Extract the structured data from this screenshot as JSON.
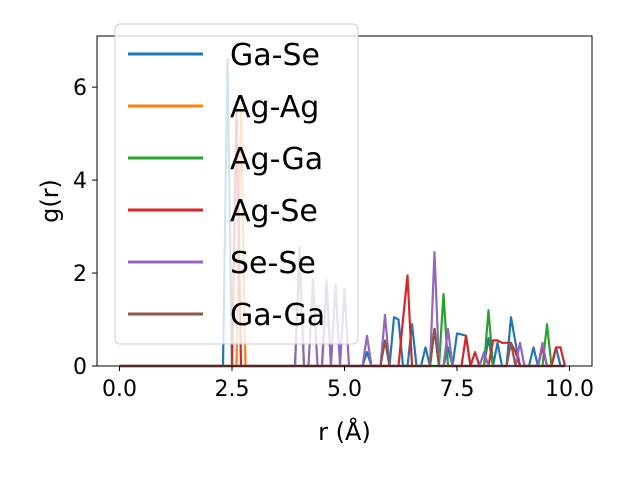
{
  "chart_data": {
    "type": "line",
    "xlabel": "r (Å)",
    "ylabel": "g(r)",
    "xlim": [
      -0.5,
      10.5
    ],
    "ylim": [
      0,
      7.1
    ],
    "xticks": [
      0.0,
      2.5,
      5.0,
      7.5,
      10.0
    ],
    "xtick_labels": [
      "0.0",
      "2.5",
      "5.0",
      "7.5",
      "10.0"
    ],
    "yticks": [
      0,
      2,
      4,
      6
    ],
    "ytick_labels": [
      "0",
      "2",
      "4",
      "6"
    ],
    "grid": false,
    "legend_position": "top-left",
    "series": [
      {
        "name": "Ga-Se",
        "color": "#1f77b4",
        "x": [
          0.0,
          2.2,
          2.3,
          2.4,
          2.5,
          2.6,
          5.2,
          5.3,
          5.4,
          5.5,
          5.6,
          5.7,
          5.8,
          5.9,
          6.0,
          6.1,
          6.2,
          6.3,
          6.4,
          6.5,
          6.6,
          6.7,
          6.8,
          6.9,
          7.0,
          7.1,
          7.2,
          7.3,
          7.4,
          7.5,
          7.6,
          7.7,
          7.8,
          7.9,
          8.0,
          8.1,
          8.2,
          8.3,
          8.4,
          8.5,
          8.6,
          8.7,
          8.8,
          8.9,
          9.0,
          9.1,
          9.2,
          9.3,
          9.4,
          9.5,
          9.6,
          9.7,
          9.8,
          9.9
        ],
        "y": [
          0.0,
          0.0,
          0.0,
          6.6,
          0.0,
          0.0,
          0.0,
          0.0,
          0.0,
          0.3,
          0.0,
          0.0,
          0.0,
          0.0,
          0.0,
          1.05,
          1.0,
          0.0,
          0.0,
          0.9,
          0.0,
          0.0,
          0.4,
          0.0,
          0.0,
          0.0,
          0.0,
          0.4,
          0.0,
          0.7,
          0.68,
          0.65,
          0.0,
          0.0,
          0.0,
          0.0,
          0.6,
          0.0,
          0.5,
          0.0,
          0.0,
          1.05,
          0.5,
          0.0,
          0.0,
          0.0,
          0.4,
          0.0,
          0.0,
          0.0,
          0.0,
          0.4,
          0.0,
          0.0
        ]
      },
      {
        "name": "Ag-Ag",
        "color": "#ff7f0e",
        "x": [
          0.0,
          2.5,
          2.6,
          2.7,
          2.8,
          3.0
        ],
        "y": [
          0.0,
          0.0,
          0.0,
          5.6,
          0.0,
          0.0
        ]
      },
      {
        "name": "Ag-Ga",
        "color": "#2ca02c",
        "x": [
          0.0,
          3.9,
          4.0,
          4.1,
          5.5,
          5.9,
          6.0,
          6.1,
          6.2,
          6.4,
          6.5,
          6.6,
          6.7,
          6.8,
          6.9,
          7.0,
          7.1,
          7.2,
          7.3,
          7.4,
          7.5,
          7.6,
          7.7,
          7.8,
          7.9,
          8.0,
          8.1,
          8.2,
          8.3,
          8.4,
          8.5,
          8.6,
          8.7,
          8.8,
          8.9,
          9.0,
          9.1,
          9.2,
          9.3,
          9.4,
          9.5,
          9.6,
          9.7,
          9.8,
          9.9
        ],
        "y": [
          0.0,
          0.0,
          2.3,
          0.0,
          0.0,
          0.0,
          0.0,
          0.0,
          0.0,
          0.0,
          0.0,
          0.0,
          0.0,
          0.0,
          0.0,
          0.0,
          0.0,
          1.55,
          0.0,
          0.0,
          0.0,
          0.0,
          0.0,
          0.0,
          0.0,
          0.0,
          0.0,
          1.2,
          0.0,
          0.0,
          0.0,
          0.0,
          0.0,
          0.0,
          0.0,
          0.0,
          0.0,
          0.0,
          0.0,
          0.0,
          0.9,
          0.0,
          0.0,
          0.0,
          0.0
        ]
      },
      {
        "name": "Ag-Se",
        "color": "#d62728",
        "x": [
          0.0,
          2.4,
          2.5,
          2.6,
          2.7,
          4.2,
          4.3,
          4.5,
          4.6,
          4.7,
          4.8,
          4.9,
          5.0,
          5.1,
          5.5,
          5.9,
          6.0,
          6.1,
          6.2,
          6.3,
          6.4,
          6.5,
          6.6,
          6.7,
          6.8,
          6.9,
          7.0,
          7.1,
          7.2,
          7.3,
          7.4,
          7.5,
          7.6,
          7.7,
          7.8,
          7.9,
          8.0,
          8.1,
          8.2,
          8.3,
          8.4,
          8.5,
          8.6,
          8.7,
          8.8,
          8.9,
          9.0,
          9.1,
          9.2,
          9.3,
          9.4,
          9.5,
          9.6,
          9.7,
          9.8,
          9.9
        ],
        "y": [
          0.0,
          0.0,
          0.0,
          5.5,
          0.0,
          0.0,
          0.0,
          0.0,
          1.8,
          0.0,
          0.0,
          0.0,
          0.0,
          0.0,
          0.0,
          0.0,
          0.0,
          0.0,
          0.0,
          1.0,
          1.95,
          0.0,
          0.0,
          0.0,
          0.0,
          0.0,
          0.8,
          0.0,
          0.0,
          0.0,
          0.0,
          0.0,
          0.0,
          0.65,
          0.0,
          0.3,
          0.0,
          0.0,
          0.0,
          0.55,
          0.55,
          0.5,
          0.5,
          0.5,
          0.3,
          0.0,
          0.0,
          0.0,
          0.0,
          0.0,
          0.4,
          0.0,
          0.0,
          0.4,
          0.4,
          0.0
        ]
      },
      {
        "name": "Se-Se",
        "color": "#9467bd",
        "x": [
          0.0,
          3.8,
          3.9,
          4.0,
          4.1,
          4.2,
          4.3,
          4.4,
          4.5,
          4.6,
          4.7,
          4.8,
          4.9,
          5.0,
          5.1,
          5.2,
          5.3,
          5.4,
          5.5,
          5.6,
          5.7,
          5.8,
          5.9,
          6.0,
          6.1,
          6.2,
          6.3,
          6.4,
          6.5,
          6.6,
          6.7,
          6.8,
          6.9,
          7.0,
          7.1,
          7.2,
          7.3,
          7.4,
          7.5,
          7.6,
          7.7,
          7.8,
          7.9,
          8.0,
          8.1,
          8.2,
          8.3,
          8.4,
          8.5,
          8.6,
          8.7,
          8.8,
          8.9,
          9.0,
          9.1,
          9.2,
          9.3,
          9.4,
          9.5,
          9.6,
          9.7,
          9.8,
          9.9
        ],
        "y": [
          0.0,
          0.0,
          0.0,
          2.55,
          0.0,
          0.0,
          1.85,
          0.0,
          0.0,
          1.85,
          0.0,
          1.75,
          0.0,
          1.65,
          0.0,
          0.0,
          0.0,
          0.0,
          0.65,
          0.0,
          0.0,
          0.0,
          1.1,
          0.0,
          0.0,
          0.0,
          0.0,
          0.0,
          0.0,
          0.0,
          0.0,
          0.0,
          0.0,
          2.45,
          0.0,
          0.0,
          0.8,
          0.0,
          0.0,
          0.0,
          0.0,
          0.0,
          0.0,
          0.0,
          0.3,
          0.0,
          0.0,
          0.0,
          0.0,
          0.0,
          0.0,
          0.0,
          0.5,
          0.0,
          0.0,
          0.0,
          0.0,
          0.5,
          0.0,
          0.0,
          0.0,
          0.0,
          0.0
        ]
      },
      {
        "name": "Ga-Ga",
        "color": "#8c564b",
        "x": [
          0.0,
          5.8,
          5.9,
          6.0,
          6.9,
          7.0,
          7.1,
          8.6,
          8.7,
          8.8,
          9.9
        ],
        "y": [
          0.0,
          0.0,
          0.55,
          0.0,
          0.0,
          0.8,
          0.0,
          0.0,
          0.5,
          0.0,
          0.0
        ]
      }
    ]
  }
}
